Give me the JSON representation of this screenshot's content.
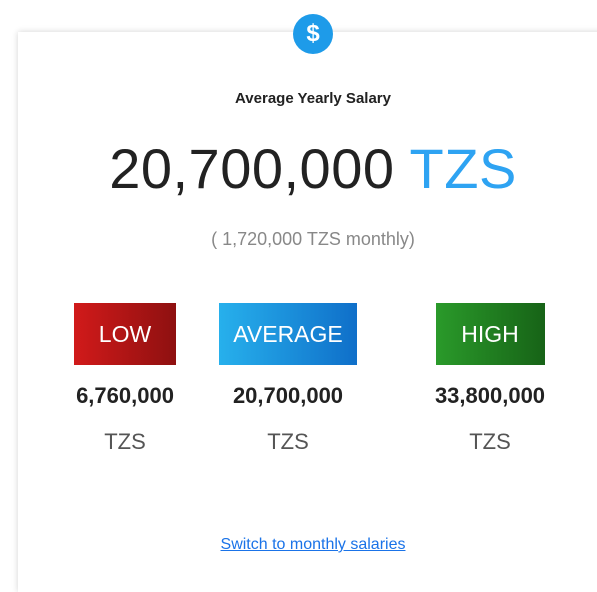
{
  "icon": "$",
  "title": "Average Yearly Salary",
  "amount": {
    "value": "20,700,000",
    "currency": "TZS"
  },
  "monthly": "( 1,720,000 TZS monthly)",
  "ranges": [
    {
      "label": "LOW",
      "value": "6,760,000",
      "unit": "TZS"
    },
    {
      "label": "AVERAGE",
      "value": "20,700,000",
      "unit": "TZS"
    },
    {
      "label": "HIGH",
      "value": "33,800,000",
      "unit": "TZS"
    }
  ],
  "link": "Switch to monthly salaries"
}
